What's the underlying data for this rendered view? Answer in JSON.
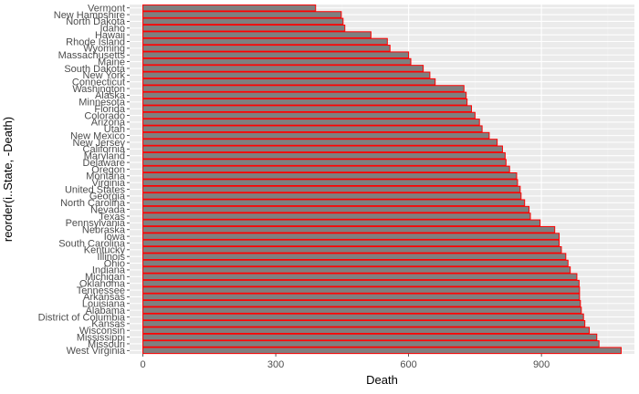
{
  "chart_data": {
    "type": "bar",
    "orientation": "horizontal",
    "title": "",
    "xlabel": "Death",
    "ylabel": "reorder(i..State, -Death)",
    "xlim": [
      -30,
      1110
    ],
    "xticks": [
      0,
      300,
      600,
      900
    ],
    "grid": true,
    "legend": "none",
    "colors": {
      "bar_fill": "#7f7f7f",
      "bar_outline": "#ff0000",
      "panel": "#ebebeb",
      "grid_major": "#ffffff",
      "grid_minor": "#f2f2f2"
    },
    "categories": [
      "Vermont",
      "New Hampshire",
      "North Dakota",
      "Idaho",
      "Hawaii",
      "Rhode Island",
      "Wyoming",
      "Massachusetts",
      "Maine",
      "South Dakota",
      "New York",
      "Connecticut",
      "Washington",
      "Alaska",
      "Minnesota",
      "Florida",
      "Colorado",
      "Arizona",
      "Utah",
      "New Mexico",
      "New Jersey",
      "California",
      "Maryland",
      "Delaware",
      "Oregon",
      "Montana",
      "Virginia",
      "United States",
      "Georgia",
      "North Carolina",
      "Nevada",
      "Texas",
      "Pennsylvania",
      "Nebraska",
      "Iowa",
      "South Carolina",
      "Kentucky",
      "Illinois",
      "Ohio",
      "Indiana",
      "Michigan",
      "Oklahoma",
      "Tennessee",
      "Arkansas",
      "Louisiana",
      "Alabama",
      "District of Columbia",
      "Kansas",
      "Wisconsin",
      "Mississippi",
      "Missouri",
      "West Virginia"
    ],
    "values": [
      390,
      448,
      452,
      456,
      515,
      552,
      558,
      600,
      605,
      633,
      648,
      660,
      725,
      730,
      732,
      742,
      750,
      760,
      766,
      782,
      800,
      812,
      818,
      820,
      828,
      844,
      846,
      852,
      854,
      862,
      872,
      875,
      897,
      930,
      940,
      940,
      945,
      955,
      960,
      965,
      980,
      985,
      986,
      986,
      988,
      990,
      995,
      998,
      1008,
      1025,
      1030,
      1080
    ]
  }
}
